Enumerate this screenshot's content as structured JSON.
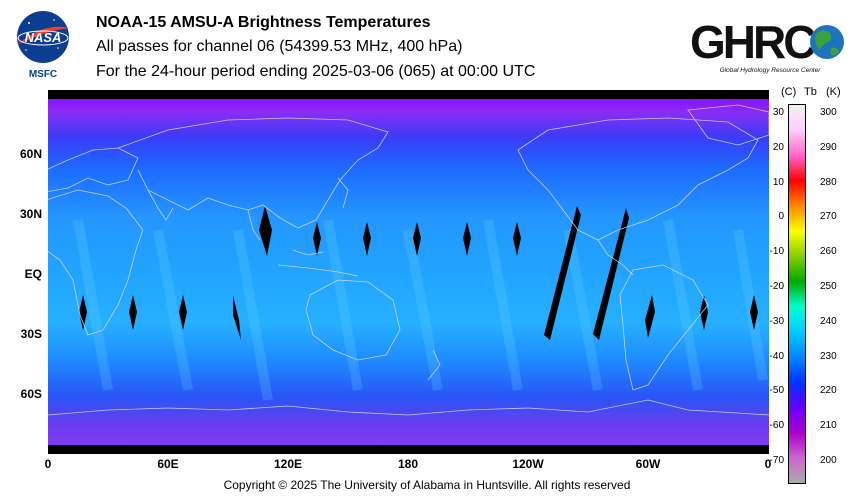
{
  "header": {
    "line1": "NOAA-15 AMSU-A Brightness Temperatures",
    "line2": "All passes for channel 06 (54399.53 MHz, 400 hPa)",
    "line3": "For the 24-hour period ending 2025-03-06 (065) at 00:00 UTC"
  },
  "logos": {
    "nasa_text": "NASA",
    "nasa_sub": "MSFC",
    "ghrc_text": "GHRC",
    "ghrc_sub": "Global Hydrology Resource Center"
  },
  "map": {
    "lat_labels": [
      "60N",
      "30N",
      "EQ",
      "30S",
      "60S"
    ],
    "lon_labels": [
      "0",
      "60E",
      "120E",
      "180",
      "120W",
      "60W",
      "0"
    ]
  },
  "colorbar": {
    "header_c": "(C)",
    "header_tb": "Tb",
    "header_k": "(K)",
    "celsius_ticks": [
      "30",
      "20",
      "10",
      "0",
      "-10",
      "-20",
      "-30",
      "-40",
      "-50",
      "-60",
      "-70"
    ],
    "kelvin_ticks": [
      "300",
      "290",
      "280",
      "270",
      "260",
      "250",
      "240",
      "230",
      "220",
      "210",
      "200"
    ],
    "colors": [
      "#f2f2f2",
      "#ffccff",
      "#ff66cc",
      "#ff0000",
      "#ff8800",
      "#ffff00",
      "#88cc00",
      "#00aa00",
      "#00ffcc",
      "#00ccff",
      "#0088ff",
      "#0033ff",
      "#6600ff",
      "#aa00cc",
      "#cc66cc",
      "#aaaaaa"
    ]
  },
  "footer": {
    "copyright": "Copyright © 2025 The University of Alabama in Huntsville.  All rights reserved"
  }
}
